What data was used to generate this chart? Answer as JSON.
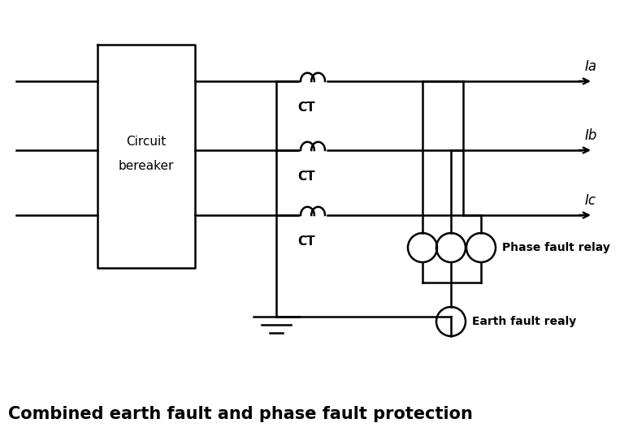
{
  "title": "Combined earth fault and phase fault protection",
  "title_fontsize": 15,
  "title_fontweight": "bold",
  "bg_color": "#ffffff",
  "line_color": "#000000",
  "lw": 1.8,
  "cb_label1": "Circuit",
  "cb_label2": "bereaker",
  "phase_labels": [
    "Ia",
    "Ib",
    "Ic"
  ],
  "phase_label_style": "italic"
}
